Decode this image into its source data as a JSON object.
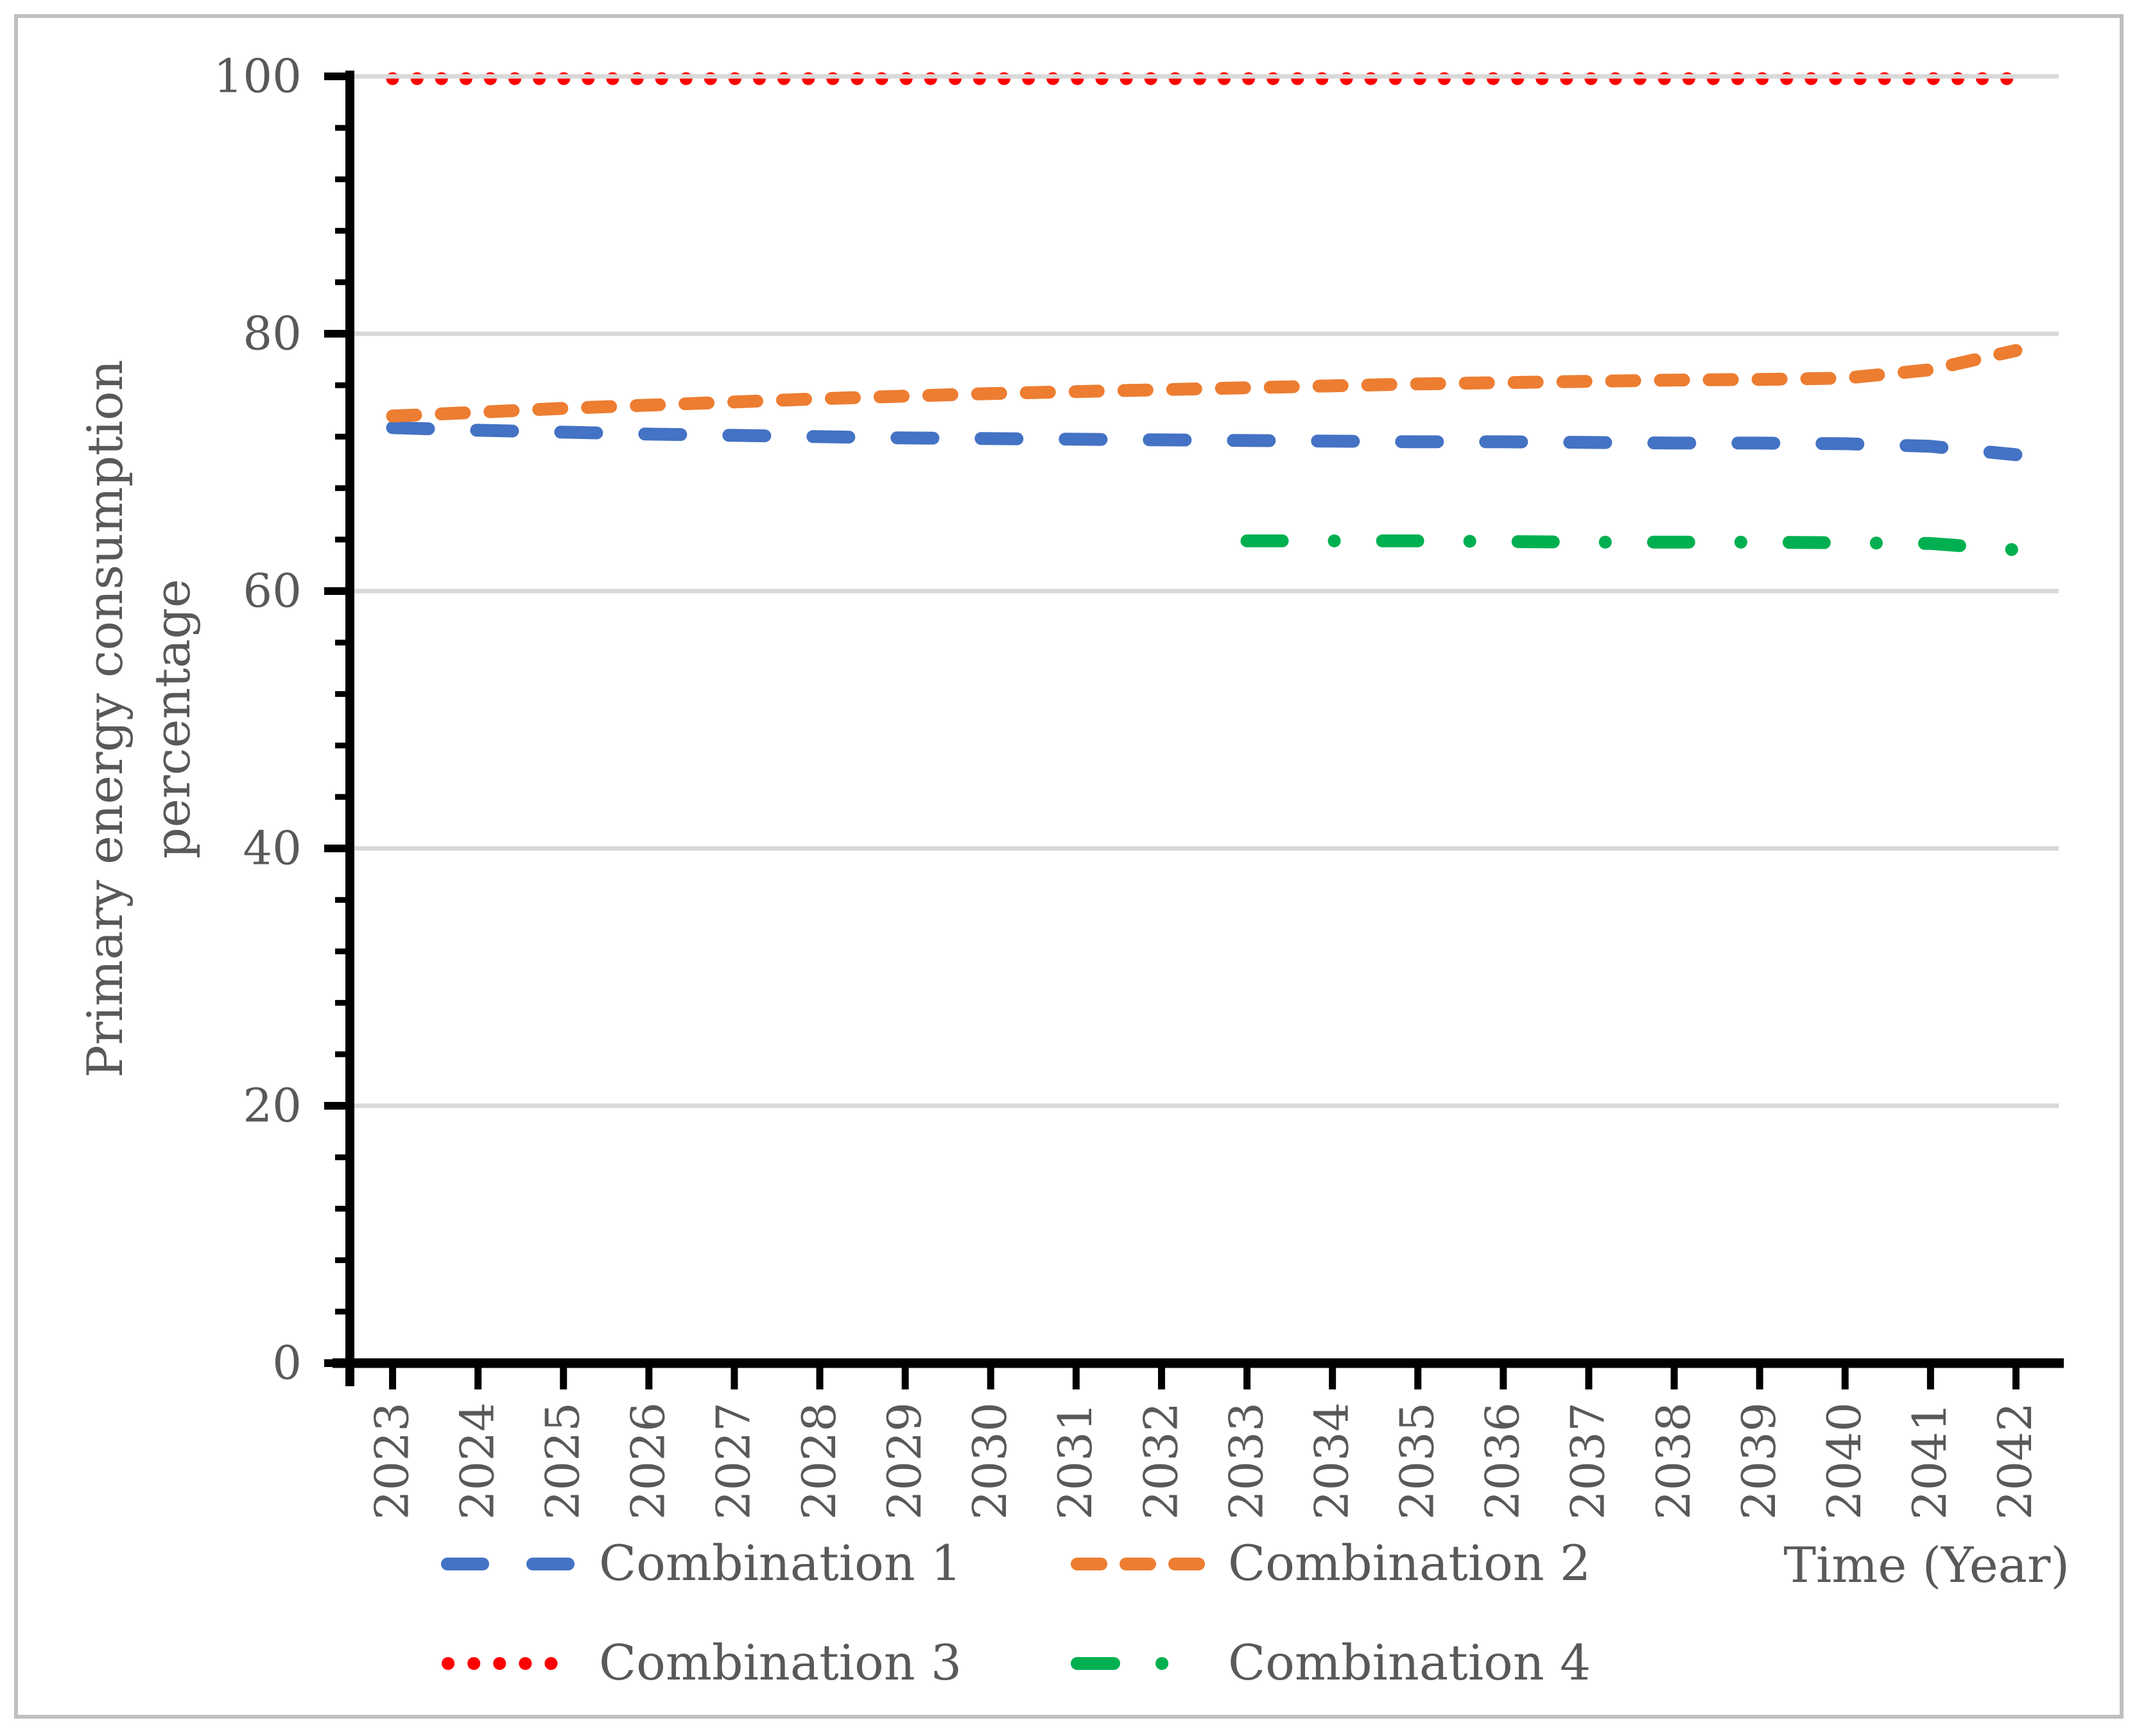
{
  "figure": {
    "frame_color": "#BFBFBF",
    "background_color": "#FFFFFF"
  },
  "chart_data": {
    "type": "line",
    "title": "",
    "xlabel": "Time (Year)",
    "ylabel_line1": "Primary energy consumption",
    "ylabel_line2": "percentage",
    "x": [
      "2023",
      "2024",
      "2025",
      "2026",
      "2027",
      "2028",
      "2029",
      "2030",
      "2031",
      "2032",
      "2033",
      "2034",
      "2035",
      "2036",
      "2037",
      "2038",
      "2039",
      "2040",
      "2041",
      "2042"
    ],
    "ylim": [
      0,
      100
    ],
    "yticks": [
      0,
      20,
      40,
      60,
      80,
      100
    ],
    "yminor_step": 4,
    "grid": "horizontal",
    "grid_color": "#D9D9D9",
    "axis_color": "#000000",
    "text_color": "#595959",
    "legend_position": "bottom",
    "series": [
      {
        "name": "Combination 1",
        "color": "#4472C4",
        "style": "long-dash",
        "values": [
          72.7,
          72.5,
          72.35,
          72.2,
          72.1,
          72.0,
          71.9,
          71.85,
          71.8,
          71.75,
          71.7,
          71.65,
          71.6,
          71.6,
          71.55,
          71.5,
          71.5,
          71.45,
          71.25,
          70.6
        ]
      },
      {
        "name": "Combination 2",
        "color": "#ED7D31",
        "style": "short-dash",
        "values": [
          73.6,
          73.9,
          74.2,
          74.45,
          74.7,
          74.95,
          75.15,
          75.35,
          75.5,
          75.65,
          75.8,
          75.95,
          76.1,
          76.2,
          76.3,
          76.4,
          76.45,
          76.55,
          77.2,
          78.7
        ]
      },
      {
        "name": "Combination 3",
        "color": "#FF0000",
        "style": "dot",
        "values": [
          100,
          100,
          100,
          100,
          100,
          100,
          100,
          100,
          100,
          100,
          100,
          100,
          100,
          100,
          100,
          100,
          100,
          100,
          100,
          100
        ]
      },
      {
        "name": "Combination 4",
        "color": "#00B050",
        "style": "dash-dot",
        "values": [
          null,
          null,
          null,
          null,
          null,
          null,
          null,
          null,
          null,
          null,
          63.9,
          63.9,
          63.9,
          63.85,
          63.8,
          63.8,
          63.8,
          63.75,
          63.7,
          63.2
        ]
      }
    ]
  }
}
